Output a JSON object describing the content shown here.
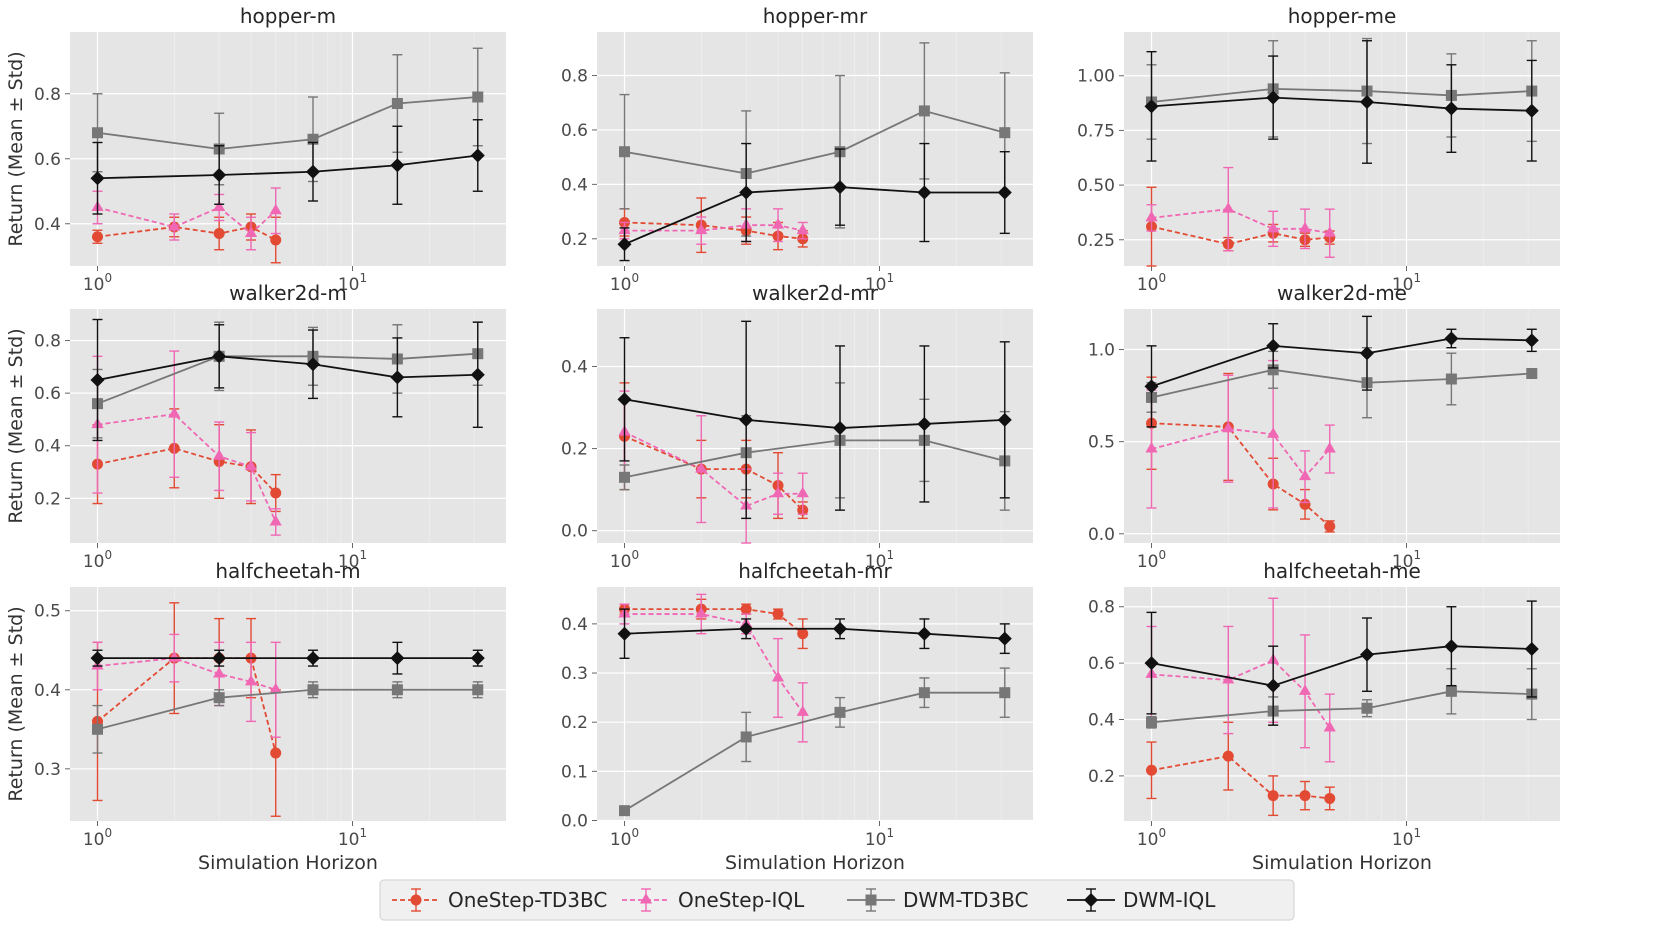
{
  "chart_data": {
    "type": "line",
    "xscale": "log",
    "xlabel": "Simulation Horizon",
    "ylabel": "Return (Mean ± Std)",
    "x_tick_labels": [
      "10^0",
      "10^1"
    ],
    "grid": true,
    "legend": {
      "placement": "bottom-center",
      "entries": [
        "OneStep-TD3BC",
        "OneStep-IQL",
        "DWM-TD3BC",
        "DWM-IQL"
      ]
    },
    "series_styles": [
      {
        "name": "OneStep-TD3BC",
        "color": "#e24a33",
        "marker": "circle",
        "dash": true
      },
      {
        "name": "OneStep-IQL",
        "color": "#f067b4",
        "marker": "triangle",
        "dash": true
      },
      {
        "name": "DWM-TD3BC",
        "color": "#777777",
        "marker": "square",
        "dash": false
      },
      {
        "name": "DWM-IQL",
        "color": "#111111",
        "marker": "diamond",
        "dash": false
      }
    ],
    "panels": [
      {
        "title": "hopper-m",
        "ylim": [
          0.27,
          0.99
        ],
        "yticks": [
          0.4,
          0.6,
          0.8
        ],
        "series": [
          {
            "name": "OneStep-TD3BC",
            "x": [
              1,
              2,
              3,
              4,
              5
            ],
            "y": [
              0.36,
              0.39,
              0.37,
              0.39,
              0.35
            ],
            "err": [
              0.02,
              0.03,
              0.05,
              0.04,
              0.07
            ]
          },
          {
            "name": "OneStep-IQL",
            "x": [
              1,
              2,
              3,
              4,
              5
            ],
            "y": [
              0.45,
              0.39,
              0.45,
              0.37,
              0.44
            ],
            "err": [
              0.05,
              0.04,
              0.04,
              0.05,
              0.07
            ]
          },
          {
            "name": "DWM-TD3BC",
            "x": [
              1,
              3,
              7,
              15,
              31
            ],
            "y": [
              0.68,
              0.63,
              0.66,
              0.77,
              0.79
            ],
            "err": [
              0.12,
              0.11,
              0.13,
              0.15,
              0.15
            ]
          },
          {
            "name": "DWM-IQL",
            "x": [
              1,
              3,
              7,
              15,
              31
            ],
            "y": [
              0.54,
              0.55,
              0.56,
              0.58,
              0.61
            ],
            "err": [
              0.11,
              0.09,
              0.09,
              0.12,
              0.11
            ]
          }
        ]
      },
      {
        "title": "hopper-mr",
        "ylim": [
          0.1,
          0.96
        ],
        "yticks": [
          0.2,
          0.4,
          0.6,
          0.8
        ],
        "series": [
          {
            "name": "OneStep-TD3BC",
            "x": [
              1,
              2,
              3,
              4,
              5
            ],
            "y": [
              0.26,
              0.25,
              0.23,
              0.21,
              0.2
            ],
            "err": [
              0.05,
              0.1,
              0.05,
              0.05,
              0.03
            ]
          },
          {
            "name": "OneStep-IQL",
            "x": [
              1,
              2,
              3,
              4,
              5
            ],
            "y": [
              0.23,
              0.23,
              0.25,
              0.25,
              0.23
            ],
            "err": [
              0.03,
              0.05,
              0.06,
              0.06,
              0.03
            ]
          },
          {
            "name": "DWM-TD3BC",
            "x": [
              1,
              3,
              7,
              15,
              31
            ],
            "y": [
              0.52,
              0.44,
              0.52,
              0.67,
              0.59
            ],
            "err": [
              0.21,
              0.23,
              0.28,
              0.25,
              0.22
            ]
          },
          {
            "name": "DWM-IQL",
            "x": [
              1,
              3,
              7,
              15,
              31
            ],
            "y": [
              0.18,
              0.37,
              0.39,
              0.37,
              0.37
            ],
            "err": [
              0.06,
              0.18,
              0.14,
              0.18,
              0.15
            ]
          }
        ]
      },
      {
        "title": "hopper-me",
        "ylim": [
          0.13,
          1.2
        ],
        "yticks": [
          0.25,
          0.5,
          0.75,
          1.0
        ],
        "ytick_labels": [
          "0.25",
          "0.50",
          "0.75",
          "1.00"
        ],
        "series": [
          {
            "name": "OneStep-TD3BC",
            "x": [
              1,
              2,
              3,
              4,
              5
            ],
            "y": [
              0.31,
              0.23,
              0.28,
              0.25,
              0.26
            ],
            "err": [
              0.18,
              0.03,
              0.04,
              0.03,
              0.03
            ]
          },
          {
            "name": "OneStep-IQL",
            "x": [
              1,
              2,
              3,
              4,
              5
            ],
            "y": [
              0.35,
              0.39,
              0.3,
              0.3,
              0.28
            ],
            "err": [
              0.06,
              0.19,
              0.08,
              0.09,
              0.11
            ]
          },
          {
            "name": "DWM-TD3BC",
            "x": [
              1,
              3,
              7,
              15,
              31
            ],
            "y": [
              0.88,
              0.94,
              0.93,
              0.91,
              0.93
            ],
            "err": [
              0.17,
              0.22,
              0.24,
              0.19,
              0.23
            ]
          },
          {
            "name": "DWM-IQL",
            "x": [
              1,
              3,
              7,
              15,
              31
            ],
            "y": [
              0.86,
              0.9,
              0.88,
              0.85,
              0.84
            ],
            "err": [
              0.25,
              0.19,
              0.28,
              0.2,
              0.23
            ]
          }
        ]
      },
      {
        "title": "walker2d-m",
        "ylim": [
          0.03,
          0.92
        ],
        "yticks": [
          0.2,
          0.4,
          0.6,
          0.8
        ],
        "series": [
          {
            "name": "OneStep-TD3BC",
            "x": [
              1,
              2,
              3,
              4,
              5
            ],
            "y": [
              0.33,
              0.39,
              0.34,
              0.32,
              0.22
            ],
            "err": [
              0.15,
              0.15,
              0.14,
              0.14,
              0.07
            ]
          },
          {
            "name": "OneStep-IQL",
            "x": [
              1,
              2,
              3,
              4,
              5
            ],
            "y": [
              0.48,
              0.52,
              0.36,
              0.32,
              0.11
            ],
            "err": [
              0.26,
              0.24,
              0.13,
              0.13,
              0.05
            ]
          },
          {
            "name": "DWM-TD3BC",
            "x": [
              1,
              3,
              7,
              15,
              31
            ],
            "y": [
              0.56,
              0.74,
              0.74,
              0.73,
              0.75
            ],
            "err": [
              0.13,
              0.13,
              0.11,
              0.13,
              0.12
            ]
          },
          {
            "name": "DWM-IQL",
            "x": [
              1,
              3,
              7,
              15,
              31
            ],
            "y": [
              0.65,
              0.74,
              0.71,
              0.66,
              0.67
            ],
            "err": [
              0.23,
              0.12,
              0.13,
              0.15,
              0.2
            ]
          }
        ]
      },
      {
        "title": "walker2d-mr",
        "ylim": [
          -0.03,
          0.54
        ],
        "yticks": [
          0.0,
          0.2,
          0.4
        ],
        "ytick_labels": [
          "0.0",
          "0.2",
          "0.4"
        ],
        "series": [
          {
            "name": "OneStep-TD3BC",
            "x": [
              1,
              2,
              3,
              4,
              5
            ],
            "y": [
              0.23,
              0.15,
              0.15,
              0.11,
              0.05
            ],
            "err": [
              0.13,
              0.07,
              0.07,
              0.08,
              0.02
            ]
          },
          {
            "name": "OneStep-IQL",
            "x": [
              1,
              2,
              3,
              4,
              5
            ],
            "y": [
              0.24,
              0.15,
              0.06,
              0.09,
              0.09
            ],
            "err": [
              0.1,
              0.13,
              0.09,
              0.05,
              0.05
            ]
          },
          {
            "name": "DWM-TD3BC",
            "x": [
              1,
              3,
              7,
              15,
              31
            ],
            "y": [
              0.13,
              0.19,
              0.22,
              0.22,
              0.17
            ],
            "err": [
              0.03,
              0.09,
              0.14,
              0.1,
              0.12
            ]
          },
          {
            "name": "DWM-IQL",
            "x": [
              1,
              3,
              7,
              15,
              31
            ],
            "y": [
              0.32,
              0.27,
              0.25,
              0.26,
              0.27
            ],
            "err": [
              0.15,
              0.24,
              0.2,
              0.19,
              0.19
            ]
          }
        ]
      },
      {
        "title": "walker2d-me",
        "ylim": [
          -0.05,
          1.22
        ],
        "yticks": [
          0.0,
          0.5,
          1.0
        ],
        "ytick_labels": [
          "0.0",
          "0.5",
          "1.0"
        ],
        "series": [
          {
            "name": "OneStep-TD3BC",
            "x": [
              1,
              2,
              3,
              4,
              5
            ],
            "y": [
              0.6,
              0.58,
              0.27,
              0.16,
              0.04
            ],
            "err": [
              0.25,
              0.29,
              0.14,
              0.08,
              0.03
            ]
          },
          {
            "name": "OneStep-IQL",
            "x": [
              1,
              2,
              3,
              4,
              5
            ],
            "y": [
              0.46,
              0.57,
              0.54,
              0.31,
              0.46
            ],
            "err": [
              0.32,
              0.29,
              0.4,
              0.14,
              0.13
            ]
          },
          {
            "name": "DWM-TD3BC",
            "x": [
              1,
              3,
              7,
              15,
              31
            ],
            "y": [
              0.74,
              0.89,
              0.82,
              0.84,
              0.87
            ],
            "err": [
              0.08,
              0.1,
              0.19,
              0.14,
              0.02
            ]
          },
          {
            "name": "DWM-IQL",
            "x": [
              1,
              3,
              7,
              15,
              31
            ],
            "y": [
              0.8,
              1.02,
              0.98,
              1.06,
              1.05
            ],
            "err": [
              0.22,
              0.12,
              0.2,
              0.05,
              0.06
            ]
          }
        ]
      },
      {
        "title": "halfcheetah-m",
        "ylim": [
          0.234,
          0.53
        ],
        "yticks": [
          0.3,
          0.4,
          0.5
        ],
        "series": [
          {
            "name": "OneStep-TD3BC",
            "x": [
              1,
              2,
              3,
              4,
              5
            ],
            "y": [
              0.36,
              0.44,
              0.44,
              0.44,
              0.32
            ],
            "err": [
              0.1,
              0.07,
              0.05,
              0.05,
              0.08
            ]
          },
          {
            "name": "OneStep-IQL",
            "x": [
              1,
              2,
              3,
              4,
              5
            ],
            "y": [
              0.43,
              0.44,
              0.42,
              0.41,
              0.4
            ],
            "err": [
              0.03,
              0.03,
              0.04,
              0.05,
              0.06
            ]
          },
          {
            "name": "DWM-TD3BC",
            "x": [
              1,
              3,
              7,
              15,
              31
            ],
            "y": [
              0.35,
              0.39,
              0.4,
              0.4,
              0.4
            ],
            "err": [
              0.03,
              0.01,
              0.01,
              0.01,
              0.01
            ]
          },
          {
            "name": "DWM-IQL",
            "x": [
              1,
              3,
              7,
              15,
              31
            ],
            "y": [
              0.44,
              0.44,
              0.44,
              0.44,
              0.44
            ],
            "err": [
              0.01,
              0.01,
              0.01,
              0.02,
              0.01
            ]
          }
        ]
      },
      {
        "title": "halfcheetah-mr",
        "ylim": [
          -0.001,
          0.475
        ],
        "yticks": [
          0.0,
          0.1,
          0.2,
          0.3,
          0.4
        ],
        "ytick_labels": [
          "0.0",
          "0.1",
          "0.2",
          "0.3",
          "0.4"
        ],
        "series": [
          {
            "name": "OneStep-TD3BC",
            "x": [
              1,
              2,
              3,
              4,
              5
            ],
            "y": [
              0.43,
              0.43,
              0.43,
              0.42,
              0.38
            ],
            "err": [
              0.01,
              0.02,
              0.01,
              0.01,
              0.03
            ]
          },
          {
            "name": "OneStep-IQL",
            "x": [
              1,
              2,
              3,
              4,
              5
            ],
            "y": [
              0.42,
              0.42,
              0.4,
              0.29,
              0.22
            ],
            "err": [
              0.02,
              0.04,
              0.02,
              0.08,
              0.06
            ]
          },
          {
            "name": "DWM-TD3BC",
            "x": [
              1,
              3,
              7,
              15,
              31
            ],
            "y": [
              0.02,
              0.17,
              0.22,
              0.26,
              0.26
            ],
            "err": [
              0.005,
              0.05,
              0.03,
              0.03,
              0.05
            ]
          },
          {
            "name": "DWM-IQL",
            "x": [
              1,
              3,
              7,
              15,
              31
            ],
            "y": [
              0.38,
              0.39,
              0.39,
              0.38,
              0.37
            ],
            "err": [
              0.05,
              0.02,
              0.02,
              0.03,
              0.03
            ]
          }
        ]
      },
      {
        "title": "halfcheetah-me",
        "ylim": [
          0.04,
          0.87
        ],
        "yticks": [
          0.2,
          0.4,
          0.6,
          0.8
        ],
        "series": [
          {
            "name": "OneStep-TD3BC",
            "x": [
              1,
              2,
              3,
              4,
              5
            ],
            "y": [
              0.22,
              0.27,
              0.13,
              0.13,
              0.12
            ],
            "err": [
              0.1,
              0.12,
              0.07,
              0.05,
              0.04
            ]
          },
          {
            "name": "OneStep-IQL",
            "x": [
              1,
              2,
              3,
              4,
              5
            ],
            "y": [
              0.56,
              0.54,
              0.61,
              0.5,
              0.37
            ],
            "err": [
              0.17,
              0.19,
              0.22,
              0.2,
              0.12
            ]
          },
          {
            "name": "DWM-TD3BC",
            "x": [
              1,
              3,
              7,
              15,
              31
            ],
            "y": [
              0.39,
              0.43,
              0.44,
              0.5,
              0.49
            ],
            "err": [
              0.02,
              0.05,
              0.03,
              0.08,
              0.09
            ]
          },
          {
            "name": "DWM-IQL",
            "x": [
              1,
              3,
              7,
              15,
              31
            ],
            "y": [
              0.6,
              0.52,
              0.63,
              0.66,
              0.65
            ],
            "err": [
              0.18,
              0.14,
              0.13,
              0.14,
              0.17
            ]
          }
        ]
      }
    ]
  }
}
